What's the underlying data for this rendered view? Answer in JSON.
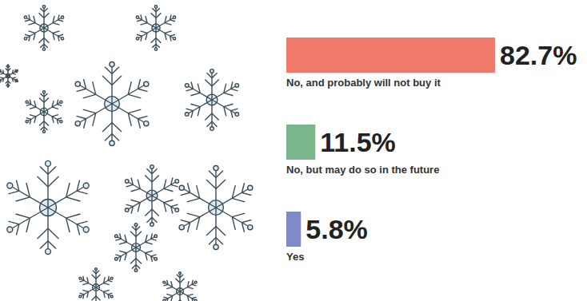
{
  "chart_data": {
    "type": "bar",
    "orientation": "horizontal",
    "categories": [
      "No, and probably will not buy it",
      "No, but may do so in the future",
      "Yes"
    ],
    "values": [
      82.7,
      11.5,
      5.8
    ],
    "value_labels": [
      "82.7%",
      "11.5%",
      "5.8%"
    ],
    "colors": [
      "#f07a6a",
      "#79b68c",
      "#7f8ac6"
    ],
    "data_labels": true,
    "tick_labels": false
  }
}
